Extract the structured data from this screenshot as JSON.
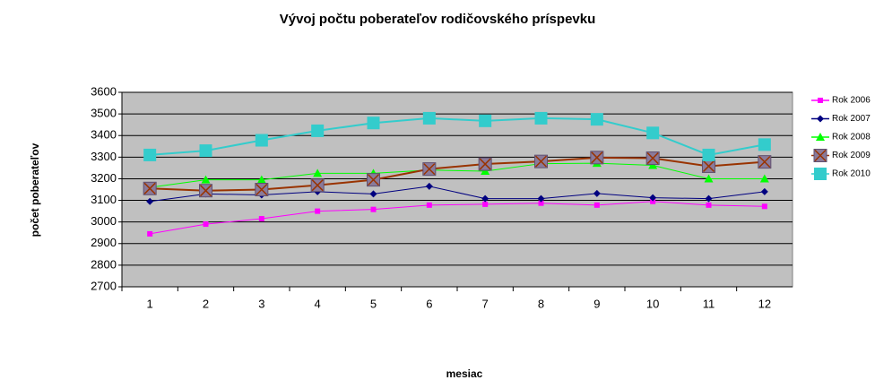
{
  "chart_data": {
    "type": "line",
    "title": "Vývoj počtu poberateľov rodičovského príspevku",
    "xlabel": "mesiac",
    "ylabel": "počet poberateľov",
    "categories": [
      "1",
      "2",
      "3",
      "4",
      "5",
      "6",
      "7",
      "8",
      "9",
      "10",
      "11",
      "12"
    ],
    "ylim": [
      2700,
      3600
    ],
    "yticks": [
      2700,
      2800,
      2900,
      3000,
      3100,
      3200,
      3300,
      3400,
      3500,
      3600
    ],
    "grid": true,
    "legend": "right",
    "series": [
      {
        "name": "Rok 2006",
        "color": "#ff00ff",
        "marker": "square-small",
        "values": [
          2945,
          2990,
          3015,
          3050,
          3058,
          3078,
          3082,
          3087,
          3078,
          3095,
          3078,
          3072
        ]
      },
      {
        "name": "Rok 2007",
        "color": "#000080",
        "marker": "diamond",
        "values": [
          3095,
          3130,
          3125,
          3140,
          3130,
          3165,
          3108,
          3108,
          3132,
          3112,
          3108,
          3140
        ]
      },
      {
        "name": "Rok 2008",
        "color": "#00ff00",
        "marker": "triangle",
        "values": [
          3160,
          3195,
          3195,
          3225,
          3225,
          3240,
          3235,
          3270,
          3272,
          3262,
          3200,
          3200
        ]
      },
      {
        "name": "Rok 2009",
        "color": "#993300",
        "marker": "square-x",
        "values": [
          3155,
          3145,
          3150,
          3170,
          3195,
          3245,
          3268,
          3280,
          3298,
          3295,
          3258,
          3278
        ]
      },
      {
        "name": "Rok 2010",
        "color": "#33cccc",
        "marker": "square-big",
        "values": [
          3310,
          3330,
          3378,
          3422,
          3458,
          3480,
          3468,
          3480,
          3475,
          3412,
          3310,
          3358
        ]
      }
    ]
  }
}
